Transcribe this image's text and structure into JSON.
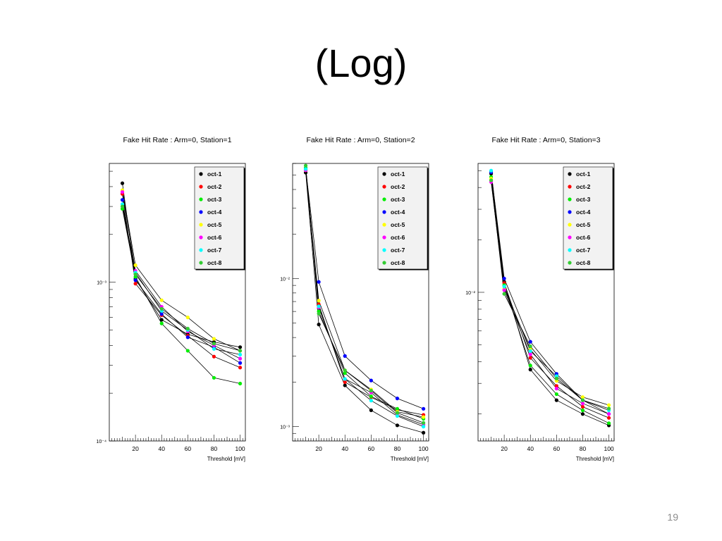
{
  "slide": {
    "title": "(Log)",
    "page_number": "19"
  },
  "series_names": [
    "oct-1",
    "oct-2",
    "oct-3",
    "oct-4",
    "oct-5",
    "oct-6",
    "oct-7",
    "oct-8"
  ],
  "series_colors": [
    "#000000",
    "#ff0000",
    "#00ee00",
    "#0000ff",
    "#ffff00",
    "#ff00ff",
    "#00ffff",
    "#33cc33"
  ],
  "chart_data": [
    {
      "type": "line",
      "log_y": true,
      "grid": false,
      "legend_position": "top-right",
      "title": "Fake Hit Rate : Arm=0, Station=1",
      "xlabel": "Threshold [mV]",
      "ylabel": "",
      "xlim": [
        0,
        104
      ],
      "ylim": [
        0.0001,
        0.0056
      ],
      "x_ticks": [
        20,
        40,
        60,
        80,
        100
      ],
      "y_ticks": [
        {
          "value": 0.001,
          "label": "10⁻³"
        },
        {
          "value": 0.0001,
          "label": "10⁻⁴"
        }
      ],
      "x": [
        10,
        20,
        40,
        60,
        80,
        100
      ],
      "series": [
        {
          "name": "oct-1",
          "values": [
            0.0042,
            0.00105,
            0.00058,
            0.00047,
            0.00042,
            0.00039
          ]
        },
        {
          "name": "oct-2",
          "values": [
            0.0036,
            0.00098,
            0.00062,
            0.00046,
            0.00034,
            0.00029
          ]
        },
        {
          "name": "oct-3",
          "values": [
            0.0029,
            0.00108,
            0.00055,
            0.00037,
            0.00025,
            0.00023
          ]
        },
        {
          "name": "oct-4",
          "values": [
            0.0033,
            0.00103,
            0.00063,
            0.00045,
            0.00039,
            0.00031
          ]
        },
        {
          "name": "oct-5",
          "values": [
            0.0038,
            0.00128,
            0.00077,
            0.0006,
            0.00044,
            0.00037
          ]
        },
        {
          "name": "oct-6",
          "values": [
            0.0037,
            0.00118,
            0.0007,
            0.00049,
            0.0004,
            0.00033
          ]
        },
        {
          "name": "oct-7",
          "values": [
            0.0031,
            0.00115,
            0.00066,
            0.0005,
            0.00038,
            0.00035
          ]
        },
        {
          "name": "oct-8",
          "values": [
            0.003,
            0.00112,
            0.00068,
            0.00051,
            0.00041,
            0.00037
          ]
        }
      ]
    },
    {
      "type": "line",
      "log_y": true,
      "grid": false,
      "legend_position": "top-right",
      "title": "Fake Hit Rate : Arm=0, Station=2",
      "xlabel": "Threshold [mV]",
      "ylabel": "",
      "xlim": [
        0,
        104
      ],
      "ylim": [
        0.0008,
        0.06
      ],
      "x_ticks": [
        20,
        40,
        60,
        80,
        100
      ],
      "y_ticks": [
        {
          "value": 0.01,
          "label": "10⁻²"
        },
        {
          "value": 0.001,
          "label": "10⁻³"
        }
      ],
      "x": [
        10,
        20,
        40,
        60,
        80,
        100
      ],
      "series": [
        {
          "name": "oct-1",
          "values": [
            0.052,
            0.0049,
            0.0019,
            0.00129,
            0.00102,
            0.00091
          ]
        },
        {
          "name": "oct-2",
          "values": [
            0.054,
            0.0067,
            0.002,
            0.00158,
            0.0013,
            0.0012
          ]
        },
        {
          "name": "oct-3",
          "values": [
            0.056,
            0.006,
            0.0023,
            0.0016,
            0.00132,
            0.00113
          ]
        },
        {
          "name": "oct-4",
          "values": [
            0.055,
            0.0095,
            0.003,
            0.00205,
            0.00155,
            0.00132
          ]
        },
        {
          "name": "oct-5",
          "values": [
            0.054,
            0.0071,
            0.0024,
            0.00178,
            0.00126,
            0.00116
          ]
        },
        {
          "name": "oct-6",
          "values": [
            0.054,
            0.0064,
            0.0021,
            0.0017,
            0.0012,
            0.00103
          ]
        },
        {
          "name": "oct-7",
          "values": [
            0.055,
            0.0065,
            0.0021,
            0.0015,
            0.00118,
            0.001
          ]
        },
        {
          "name": "oct-8",
          "values": [
            0.058,
            0.0058,
            0.0024,
            0.00175,
            0.00124,
            0.00106
          ]
        }
      ]
    },
    {
      "type": "line",
      "log_y": true,
      "grid": false,
      "legend_position": "top-right",
      "title": "Fake Hit Rate : Arm=0, Station=3",
      "xlabel": "Threshold [mV]",
      "ylabel": "",
      "xlim": [
        0,
        104
      ],
      "ylim": [
        0.0014,
        0.055
      ],
      "x_ticks": [
        20,
        40,
        60,
        80,
        100
      ],
      "y_ticks": [
        {
          "value": 0.01,
          "label": "10⁻²"
        }
      ],
      "x": [
        10,
        20,
        40,
        60,
        80,
        100
      ],
      "series": [
        {
          "name": "oct-1",
          "values": [
            0.048,
            0.0115,
            0.0036,
            0.0024,
            0.002,
            0.00172
          ]
        },
        {
          "name": "oct-2",
          "values": [
            0.044,
            0.0113,
            0.0042,
            0.0029,
            0.0022,
            0.0019
          ]
        },
        {
          "name": "oct-3",
          "values": [
            0.046,
            0.011,
            0.0038,
            0.0026,
            0.0021,
            0.00177
          ]
        },
        {
          "name": "oct-4",
          "values": [
            0.049,
            0.012,
            0.0052,
            0.0034,
            0.0024,
            0.002
          ]
        },
        {
          "name": "oct-5",
          "values": [
            0.045,
            0.0105,
            0.0047,
            0.0031,
            0.0025,
            0.00225
          ]
        },
        {
          "name": "oct-6",
          "values": [
            0.043,
            0.0103,
            0.0044,
            0.0028,
            0.0023,
            0.002
          ]
        },
        {
          "name": "oct-7",
          "values": [
            0.05,
            0.0108,
            0.0046,
            0.0033,
            0.0024,
            0.0021
          ]
        },
        {
          "name": "oct-8",
          "values": [
            0.044,
            0.0098,
            0.0049,
            0.0032,
            0.0024,
            0.00215
          ]
        }
      ]
    }
  ]
}
